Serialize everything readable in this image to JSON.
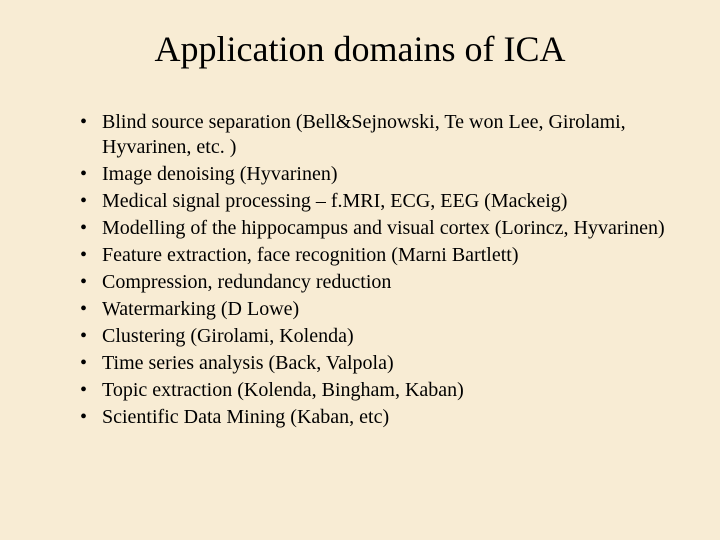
{
  "slide": {
    "background_color": "#f8ecd4",
    "text_color": "#000000",
    "title": "Application domains of ICA",
    "title_fontsize": 36,
    "body_fontsize": 20,
    "font_family": "Times New Roman",
    "bullets": [
      "Blind source separation (Bell&Sejnowski, Te won Lee, Girolami, Hyvarinen, etc. )",
      "Image denoising (Hyvarinen)",
      "Medical signal processing – f.MRI, ECG, EEG (Mackeig)",
      "Modelling of the hippocampus and visual cortex (Lorincz, Hyvarinen)",
      "Feature extraction, face recognition (Marni Bartlett)",
      "Compression, redundancy reduction",
      "Watermarking (D Lowe)",
      "Clustering (Girolami, Kolenda)",
      "Time series analysis (Back, Valpola)",
      "Topic extraction (Kolenda, Bingham, Kaban)",
      "Scientific Data Mining (Kaban, etc)"
    ]
  }
}
